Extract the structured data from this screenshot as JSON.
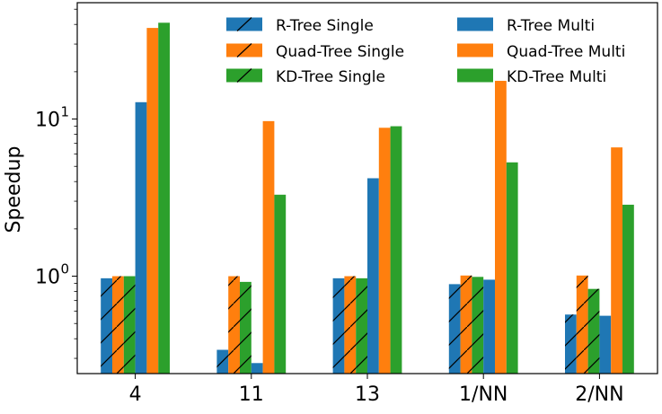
{
  "chart_data": {
    "type": "bar",
    "title": "",
    "xlabel": "",
    "ylabel": "Speedup",
    "yscale": "log",
    "ylim": [
      0.24,
      55
    ],
    "yticks": [
      {
        "value": 1,
        "base": "10",
        "exp": "0"
      },
      {
        "value": 10,
        "base": "10",
        "exp": "1"
      }
    ],
    "categories": [
      "4",
      "11",
      "13",
      "1/NN",
      "2/NN"
    ],
    "series": [
      {
        "name": "R-Tree Single",
        "color": "#1f77b4",
        "hatch": true,
        "values": [
          0.97,
          0.34,
          0.97,
          0.89,
          0.57
        ]
      },
      {
        "name": "Quad-Tree Single",
        "color": "#ff7f0e",
        "hatch": true,
        "values": [
          1.0,
          1.0,
          1.0,
          1.01,
          1.01
        ]
      },
      {
        "name": "KD-Tree Single",
        "color": "#2ca02c",
        "hatch": true,
        "values": [
          1.0,
          0.92,
          0.97,
          0.99,
          0.83
        ]
      },
      {
        "name": "R-Tree Multi",
        "color": "#1f77b4",
        "hatch": false,
        "values": [
          12.8,
          0.28,
          4.2,
          0.95,
          0.56
        ]
      },
      {
        "name": "Quad-Tree Multi",
        "color": "#ff7f0e",
        "hatch": false,
        "values": [
          38.0,
          9.7,
          8.8,
          17.5,
          6.6
        ]
      },
      {
        "name": "KD-Tree Multi",
        "color": "#2ca02c",
        "hatch": false,
        "values": [
          41.0,
          3.3,
          9.0,
          5.3,
          2.85
        ]
      }
    ],
    "legend": {
      "placement": "top-right",
      "columns": 2
    }
  }
}
